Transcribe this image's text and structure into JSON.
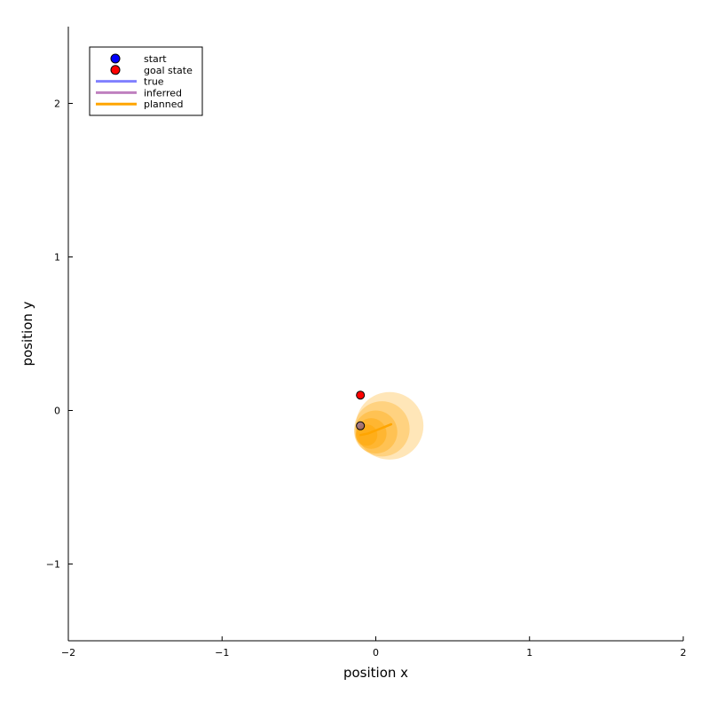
{
  "chart_data": {
    "type": "scatter",
    "xlabel": "position x",
    "ylabel": "position y",
    "xlim": [
      -2,
      2
    ],
    "ylim": [
      -1.5,
      2.5
    ],
    "xticks": [
      -2,
      -1,
      0,
      1,
      2
    ],
    "yticks": [
      -1,
      0,
      1,
      2
    ],
    "xtick_labels": [
      "−2",
      "−1",
      "0",
      "1",
      "2"
    ],
    "ytick_labels": [
      "−1",
      "0",
      "1",
      "2"
    ],
    "grid": false,
    "legend_position": "top-left",
    "legend": [
      {
        "label": "start",
        "kind": "marker",
        "color": "#0000ff"
      },
      {
        "label": "goal state",
        "kind": "marker",
        "color": "#ff0000"
      },
      {
        "label": "true",
        "kind": "line",
        "color": "#8080ff"
      },
      {
        "label": "inferred",
        "kind": "line",
        "color": "#bf80bf"
      },
      {
        "label": "planned",
        "kind": "line",
        "color": "#ffa500"
      }
    ],
    "start": {
      "x": -0.1,
      "y": -0.1
    },
    "goal": {
      "x": -0.1,
      "y": 0.1
    },
    "planned_path": {
      "x": [
        -0.1,
        -0.05,
        0.0,
        0.05,
        0.1
      ],
      "y": [
        -0.16,
        -0.15,
        -0.13,
        -0.11,
        -0.09
      ]
    },
    "uncertainty_ellipses": [
      {
        "x": 0.09,
        "y": -0.1,
        "rx": 0.22,
        "ry": 0.22,
        "opacity": 0.28
      },
      {
        "x": 0.04,
        "y": -0.12,
        "rx": 0.18,
        "ry": 0.18,
        "opacity": 0.3
      },
      {
        "x": 0.0,
        "y": -0.14,
        "rx": 0.14,
        "ry": 0.14,
        "opacity": 0.35
      },
      {
        "x": -0.03,
        "y": -0.15,
        "rx": 0.1,
        "ry": 0.1,
        "opacity": 0.4
      },
      {
        "x": -0.06,
        "y": -0.16,
        "rx": 0.07,
        "ry": 0.07,
        "opacity": 0.45
      }
    ]
  }
}
